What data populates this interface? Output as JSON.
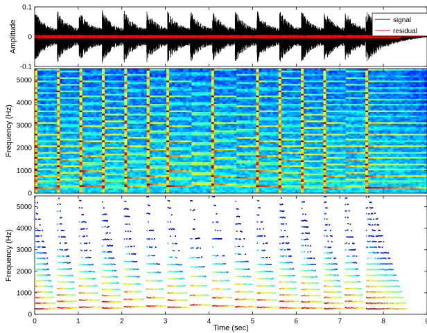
{
  "chart_data": [
    {
      "type": "line",
      "panel": "waveform",
      "ylabel": "Amplitude",
      "xlim": [
        0,
        9
      ],
      "ylim": [
        -0.1,
        0.1
      ],
      "yticks": [
        -0.1,
        0,
        0.1
      ],
      "ytick_labels": [
        "-0.1",
        "0",
        "0.1"
      ],
      "grid": false,
      "legend": {
        "placement": "top-right",
        "entries": [
          "signal",
          "residual"
        ]
      },
      "note_onsets": [
        0.0,
        0.52,
        1.02,
        1.55,
        2.05,
        2.57,
        3.05,
        3.57,
        4.08,
        4.6,
        5.1,
        5.62,
        6.12,
        6.64,
        7.12,
        7.6
      ],
      "series": [
        {
          "name": "signal",
          "color": "#000000",
          "peak_amplitude": 0.09,
          "decay_end": 9.0
        },
        {
          "name": "residual",
          "color": "#ff0000",
          "peak_amplitude": 0.006
        }
      ]
    },
    {
      "type": "heatmap",
      "panel": "spectrogram",
      "ylabel": "Frequency (Hz)",
      "xlim": [
        0,
        9
      ],
      "ylim": [
        0,
        5500
      ],
      "yticks": [
        0,
        1000,
        2000,
        3000,
        4000,
        5000
      ],
      "ytick_labels": [
        "0",
        "1000",
        "2000",
        "3000",
        "4000",
        "5000"
      ],
      "colormap": "jet",
      "fundamental_hz_per_note": [
        260,
        300,
        330,
        290,
        350,
        390,
        330,
        440,
        390,
        350,
        330,
        300,
        290,
        260,
        300,
        260
      ]
    },
    {
      "type": "scatter",
      "panel": "sinusoidal-tracks",
      "ylabel": "Frequency (Hz)",
      "xlabel": "Time (sec)",
      "xlim": [
        0,
        9
      ],
      "ylim": [
        0,
        5500
      ],
      "xticks": [
        0,
        1,
        2,
        3,
        4,
        5,
        6,
        7,
        8,
        9
      ],
      "xtick_labels": [
        "0",
        "1",
        "2",
        "3",
        "4",
        "5",
        "6",
        "7",
        "8",
        "9"
      ],
      "yticks": [
        0,
        1000,
        2000,
        3000,
        4000,
        5000
      ],
      "ytick_labels": [
        "0",
        "1000",
        "2000",
        "3000",
        "4000",
        "5000"
      ],
      "colormap": "jet"
    }
  ]
}
